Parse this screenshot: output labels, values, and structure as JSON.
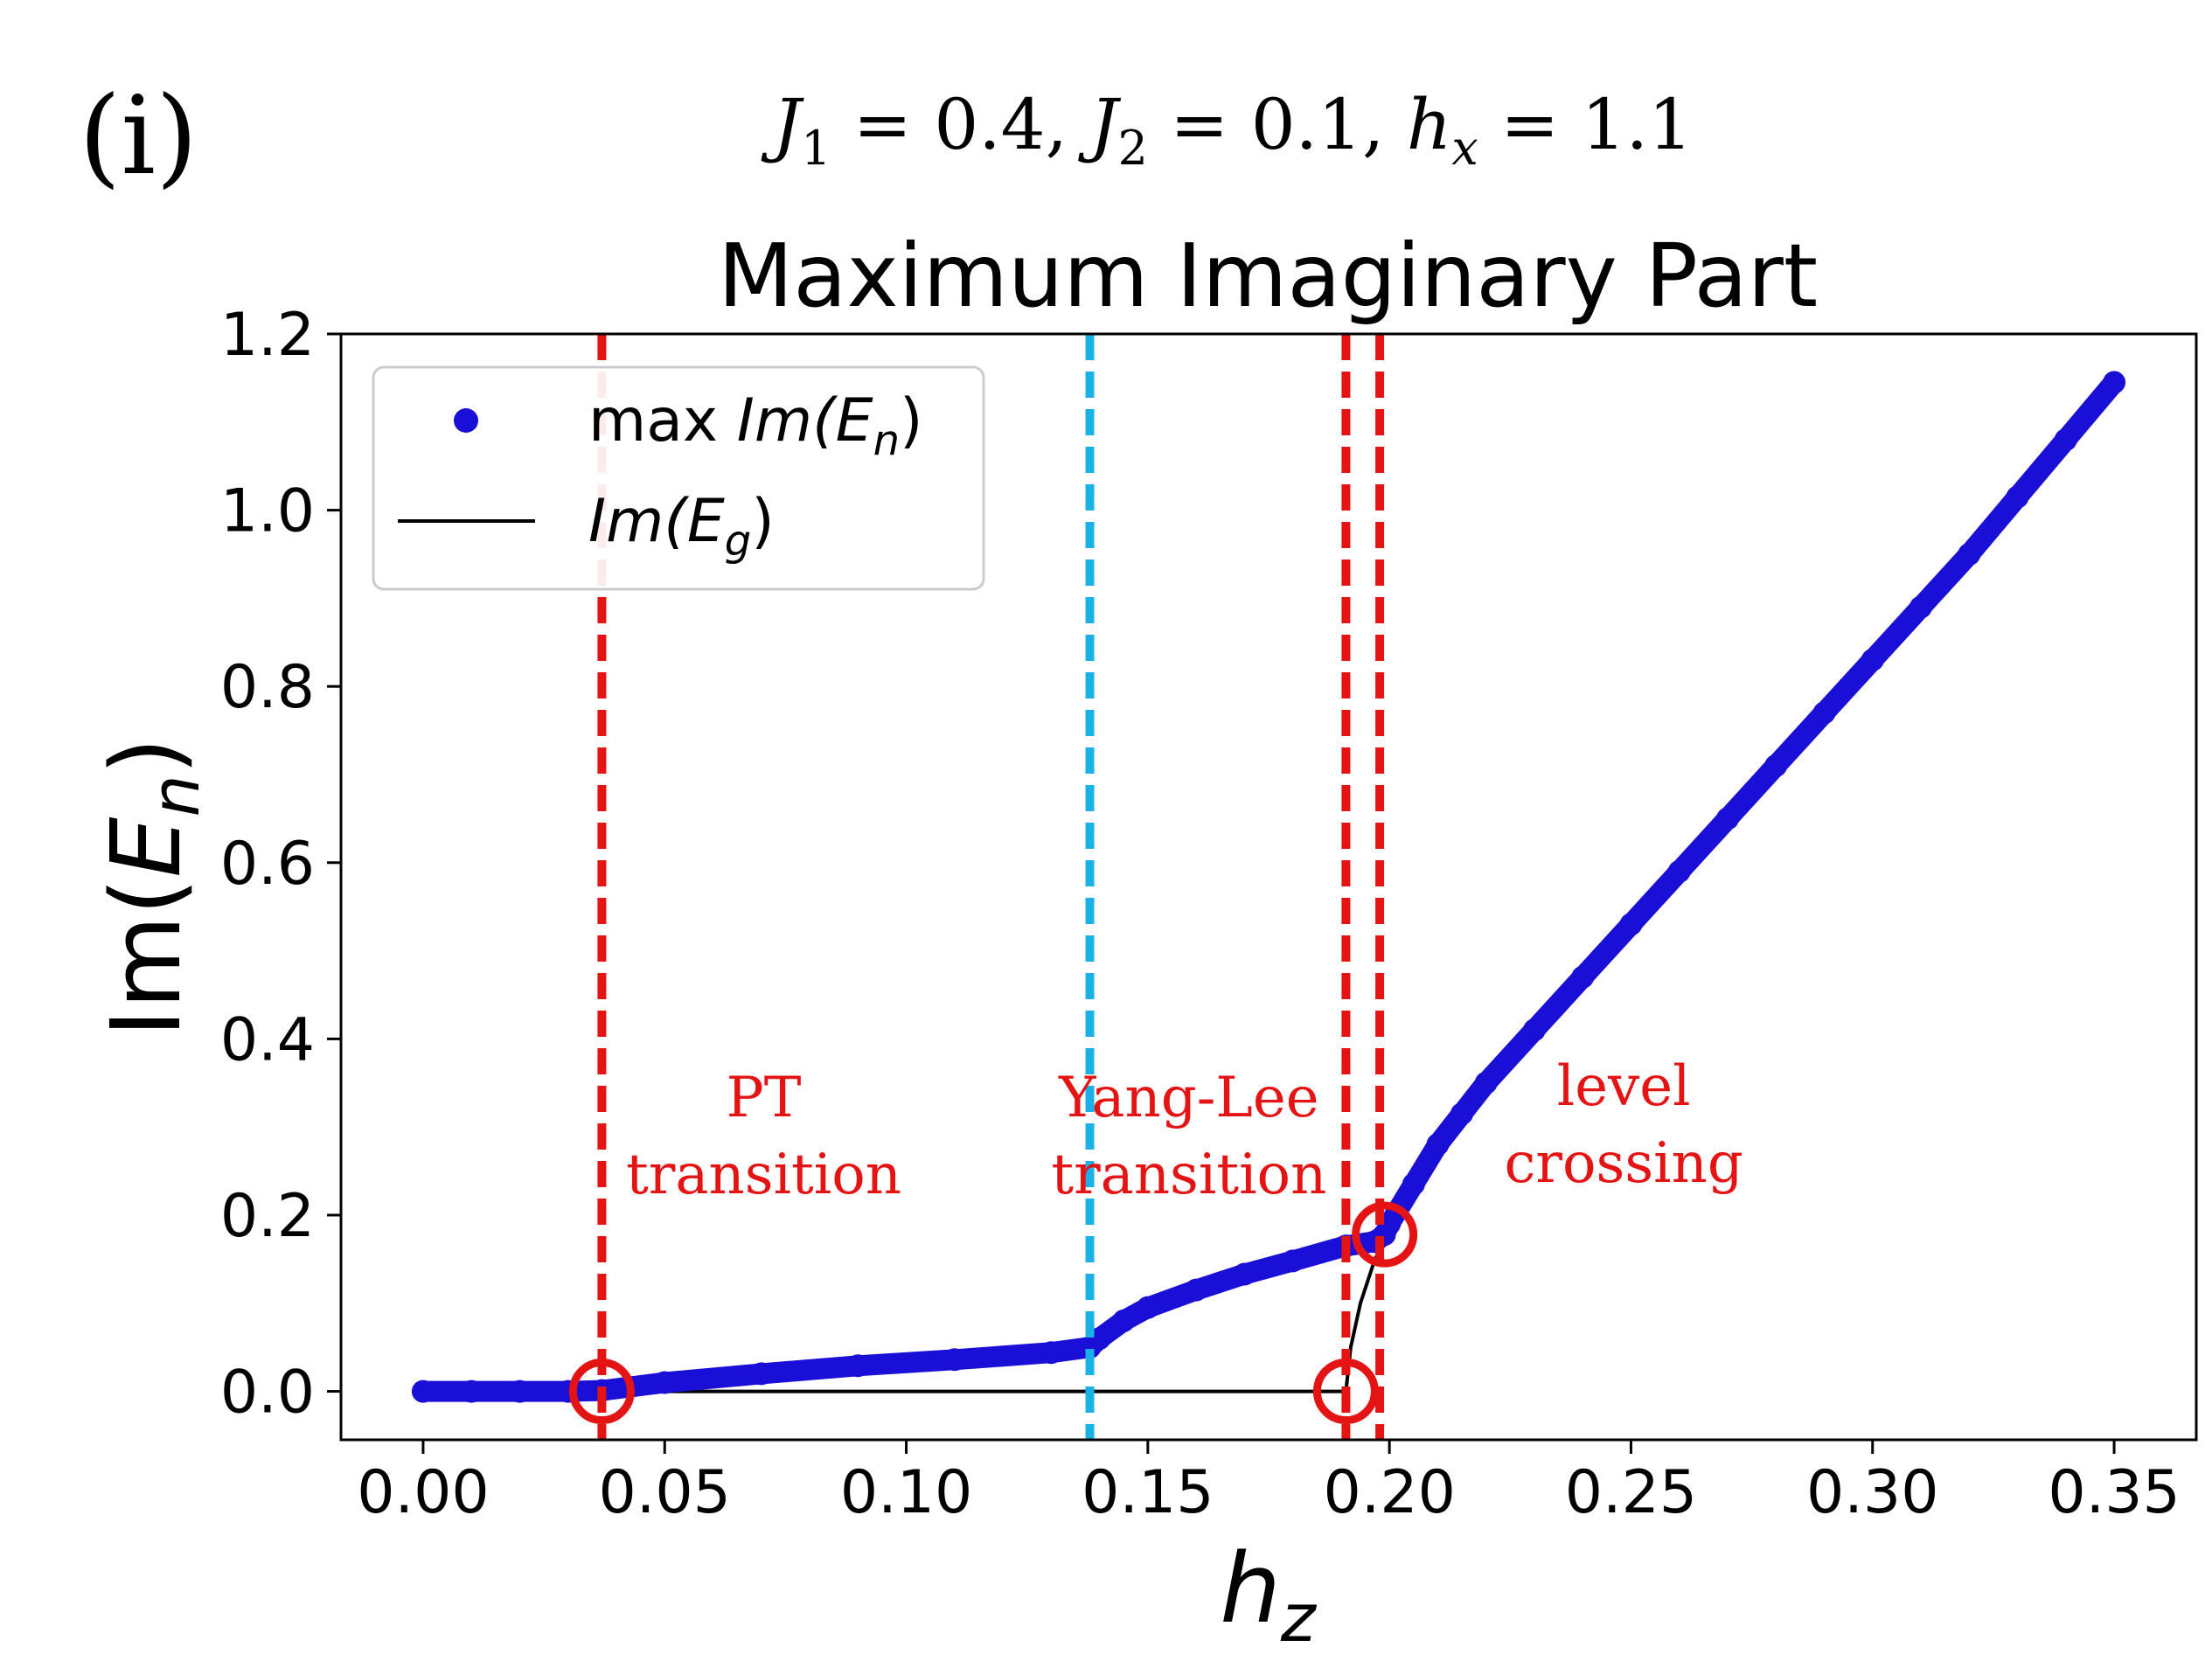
{
  "panel_label": "(i)",
  "params": {
    "J1_sym": "J",
    "J1_sub": "1",
    "J1_val": " = 0.4, ",
    "J2_sym": "J",
    "J2_sub": "2",
    "J2_val": " = 0.1, ",
    "hx_sym": "h",
    "hx_sub": "x",
    "hx_val": " = 1.1"
  },
  "chart_data": {
    "type": "line",
    "title": "Maximum Imaginary Part",
    "xlabel_sym": "h",
    "xlabel_sub": "z",
    "ylabel_pre": "Im(",
    "ylabel_sym": "E",
    "ylabel_sub": "n",
    "ylabel_post": ")",
    "xlim": [
      -0.017,
      0.367
    ],
    "ylim": [
      -0.055,
      1.2
    ],
    "xticks": [
      "0.00",
      "0.05",
      "0.10",
      "0.15",
      "0.20",
      "0.25",
      "0.30",
      "0.35"
    ],
    "yticks": [
      "0.0",
      "0.2",
      "0.4",
      "0.6",
      "0.8",
      "1.0",
      "1.2"
    ],
    "legend": {
      "position": "upper-left",
      "entries": [
        {
          "pre": "max ",
          "sym": "Im(E",
          "sub": "n",
          "post": ")"
        },
        {
          "pre": "",
          "sym": "Im(E",
          "sub": "g",
          "post": ")"
        }
      ]
    },
    "series": [
      {
        "name": "max Im(E_n)",
        "style": "markers",
        "color": "#1a0fd6",
        "x": [
          0.0,
          0.01,
          0.02,
          0.03,
          0.037,
          0.05,
          0.07,
          0.09,
          0.11,
          0.13,
          0.138,
          0.14,
          0.145,
          0.15,
          0.16,
          0.17,
          0.18,
          0.191,
          0.197,
          0.199,
          0.2,
          0.205,
          0.21,
          0.215,
          0.22,
          0.23,
          0.24,
          0.25,
          0.26,
          0.27,
          0.28,
          0.29,
          0.3,
          0.31,
          0.32,
          0.33,
          0.34,
          0.35
        ],
        "y": [
          0.0,
          0.0,
          0.0,
          0.0,
          0.001,
          0.01,
          0.02,
          0.029,
          0.036,
          0.044,
          0.05,
          0.06,
          0.08,
          0.095,
          0.115,
          0.133,
          0.148,
          0.165,
          0.17,
          0.178,
          0.19,
          0.235,
          0.28,
          0.315,
          0.35,
          0.41,
          0.47,
          0.53,
          0.59,
          0.65,
          0.71,
          0.77,
          0.83,
          0.89,
          0.95,
          1.015,
          1.08,
          1.145
        ]
      },
      {
        "name": "Im(E_g)",
        "style": "line",
        "color": "#000000",
        "x": [
          0.0,
          0.191,
          0.192,
          0.194,
          0.197,
          0.2
        ],
        "y": [
          0.0,
          0.0,
          0.05,
          0.1,
          0.15,
          0.18
        ]
      }
    ],
    "vlines": [
      {
        "x": 0.037,
        "color": "#e41414"
      },
      {
        "x": 0.138,
        "color": "#1cb0e8"
      },
      {
        "x": 0.191,
        "color": "#e41414"
      },
      {
        "x": 0.198,
        "color": "#e41414"
      }
    ],
    "circles": [
      {
        "x": 0.037,
        "y": 0.0
      },
      {
        "x": 0.191,
        "y": 0.0
      },
      {
        "x": 0.199,
        "y": 0.178
      }
    ],
    "annotations": [
      {
        "lines": [
          "PT",
          "transition"
        ],
        "x": 0.0705,
        "y": 0.312,
        "color": "#e41414"
      },
      {
        "lines": [
          "Yang-Lee",
          "transition"
        ],
        "x": 0.1585,
        "y": 0.312,
        "color": "#e41414"
      },
      {
        "lines": [
          "level",
          "crossing"
        ],
        "x": 0.2485,
        "y": 0.325,
        "color": "#e41414"
      }
    ]
  }
}
